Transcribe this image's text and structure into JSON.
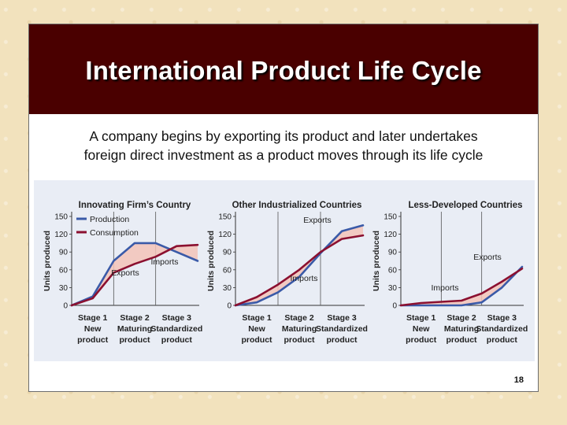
{
  "slide": {
    "title": "International Product Life Cycle",
    "subtitle_line1": "A company begins by exporting its product and later undertakes",
    "subtitle_line2": "foreign direct investment as a product moves through its life cycle",
    "page_number": "18"
  },
  "colors": {
    "header_bg": "#4a0000",
    "production": "#3a5aa8",
    "consumption": "#8b1030",
    "gap_fill": "#f3c3b8",
    "panel_bg": "#e9edf5"
  },
  "chart_data": [
    {
      "type": "line",
      "title": "Innovating Firm’s Country",
      "ylabel": "Units produced",
      "ylim": [
        0,
        150
      ],
      "yticks": [
        "0",
        "30",
        "60",
        "90",
        "120",
        "150"
      ],
      "stages": [
        {
          "line1": "Stage 1",
          "line2": "New",
          "line3": "product"
        },
        {
          "line1": "Stage 2",
          "line2": "Maturing",
          "line3": "product"
        },
        {
          "line1": "Stage 3",
          "line2": "Standardized",
          "line3": "product"
        }
      ],
      "x": [
        0,
        0.5,
        1,
        1.5,
        2,
        2.5,
        3
      ],
      "legend": [
        "Production",
        "Consumption"
      ],
      "series": [
        {
          "name": "Production",
          "values": [
            0,
            15,
            75,
            105,
            105,
            90,
            75
          ]
        },
        {
          "name": "Consumption",
          "values": [
            0,
            12,
            55,
            70,
            82,
            100,
            102
          ]
        }
      ],
      "annotations": [
        "Exports",
        "Imports"
      ]
    },
    {
      "type": "line",
      "title": "Other Industrialized Countries",
      "ylabel": "Units produced",
      "ylim": [
        0,
        150
      ],
      "yticks": [
        "0",
        "30",
        "60",
        "90",
        "120",
        "150"
      ],
      "stages": [
        {
          "line1": "Stage 1",
          "line2": "New",
          "line3": "product"
        },
        {
          "line1": "Stage 2",
          "line2": "Maturing",
          "line3": "product"
        },
        {
          "line1": "Stage 3",
          "line2": "Standardized",
          "line3": "product"
        }
      ],
      "x": [
        0,
        0.5,
        1,
        1.5,
        2,
        2.5,
        3
      ],
      "series": [
        {
          "name": "Production",
          "values": [
            0,
            5,
            22,
            48,
            88,
            125,
            135
          ]
        },
        {
          "name": "Consumption",
          "values": [
            0,
            14,
            35,
            60,
            90,
            112,
            118
          ]
        }
      ],
      "annotations": [
        "Exports",
        "Imports"
      ]
    },
    {
      "type": "line",
      "title": "Less-Developed Countries",
      "ylabel": "Units produced",
      "ylim": [
        0,
        150
      ],
      "yticks": [
        "0",
        "30",
        "60",
        "90",
        "120",
        "150"
      ],
      "stages": [
        {
          "line1": "Stage 1",
          "line2": "New",
          "line3": "product"
        },
        {
          "line1": "Stage 2",
          "line2": "Maturing",
          "line3": "product"
        },
        {
          "line1": "Stage 3",
          "line2": "Standardized",
          "line3": "product"
        }
      ],
      "x": [
        0,
        0.5,
        1,
        1.5,
        2,
        2.5,
        3
      ],
      "series": [
        {
          "name": "Production",
          "values": [
            0,
            0,
            0,
            0,
            5,
            30,
            65
          ]
        },
        {
          "name": "Consumption",
          "values": [
            0,
            4,
            6,
            8,
            20,
            40,
            62
          ]
        }
      ],
      "annotations": [
        "Exports",
        "Imports"
      ]
    }
  ]
}
